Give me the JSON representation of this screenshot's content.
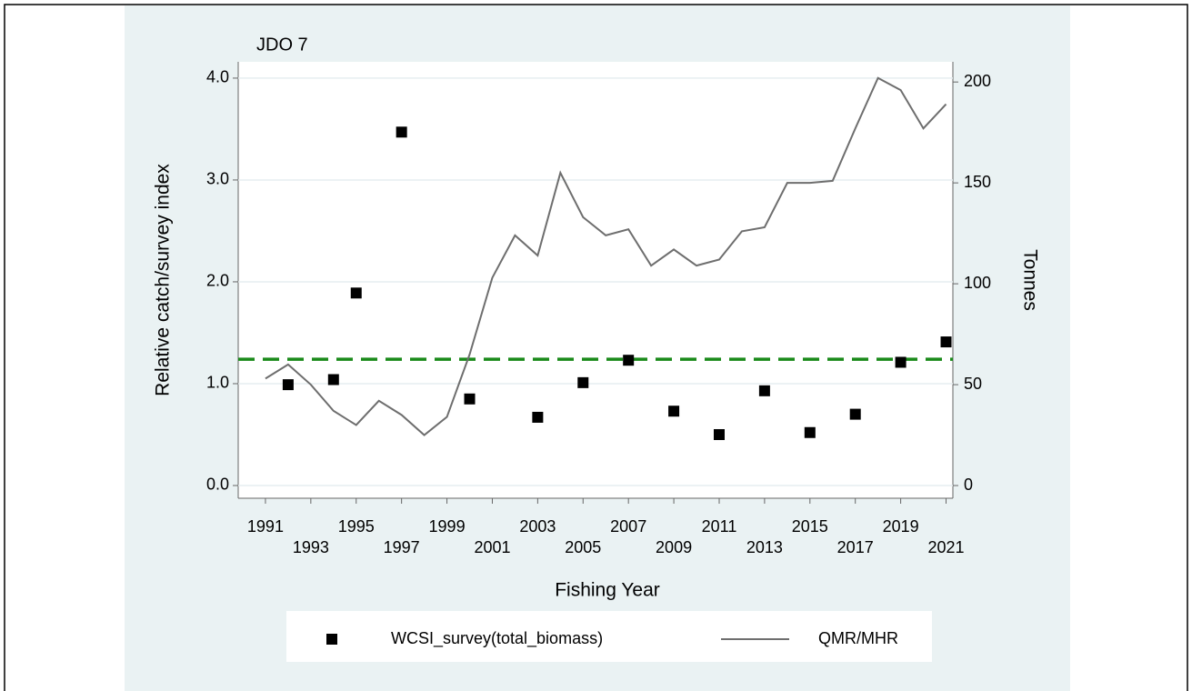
{
  "chart_data": {
    "type": "combo",
    "title": "JDO 7",
    "x_label": "Fishing Year",
    "y_label": "Relative catch/survey index",
    "y2_label": "Tonnes",
    "xlim": [
      1989.8,
      2021.3
    ],
    "xticks": [
      1991,
      1993,
      1995,
      1997,
      1999,
      2001,
      2003,
      2005,
      2007,
      2009,
      2011,
      2013,
      2015,
      2017,
      2019,
      2021
    ],
    "ylim": [
      -0.125,
      4.16
    ],
    "yticks": [
      {
        "value": 0,
        "label": "0.0"
      },
      {
        "value": 1,
        "label": "1.0"
      },
      {
        "value": 2,
        "label": "2.0"
      },
      {
        "value": 3,
        "label": "3.0"
      },
      {
        "value": 4,
        "label": "4.0"
      }
    ],
    "y2lim": [
      -6.3,
      210
    ],
    "y2ticks": [
      0,
      50,
      100,
      150,
      200
    ],
    "grid": true,
    "reference_line": {
      "value": 1.24,
      "color": "#1a8a1a"
    },
    "series": [
      {
        "name": "WCSI_survey(total_biomass)",
        "type": "scatter",
        "color": "#000000",
        "x": [
          1992,
          1994,
          1995,
          1997,
          2000,
          2003,
          2005,
          2007,
          2009,
          2011,
          2013,
          2015,
          2017,
          2019,
          2021
        ],
        "values": [
          0.99,
          1.04,
          1.89,
          3.47,
          0.85,
          0.67,
          1.01,
          1.23,
          0.73,
          0.5,
          0.93,
          0.52,
          0.7,
          1.21,
          1.41
        ]
      },
      {
        "name": "QMR/MHR",
        "type": "line",
        "axis": "y2",
        "color": "#6e6e6e",
        "x": [
          1991,
          1992,
          1993,
          1994,
          1995,
          1996,
          1997,
          1998,
          1999,
          2000,
          2001,
          2002,
          2003,
          2004,
          2005,
          2006,
          2007,
          2008,
          2009,
          2010,
          2011,
          2012,
          2013,
          2014,
          2015,
          2016,
          2017,
          2018,
          2019,
          2020,
          2021
        ],
        "values": [
          53,
          60,
          50,
          37,
          30,
          42,
          35,
          25,
          34,
          65,
          103,
          124,
          114,
          155,
          133,
          124,
          127,
          109,
          117,
          109,
          112,
          126,
          128,
          150,
          150,
          151,
          177,
          202,
          196,
          177,
          189
        ]
      }
    ]
  }
}
